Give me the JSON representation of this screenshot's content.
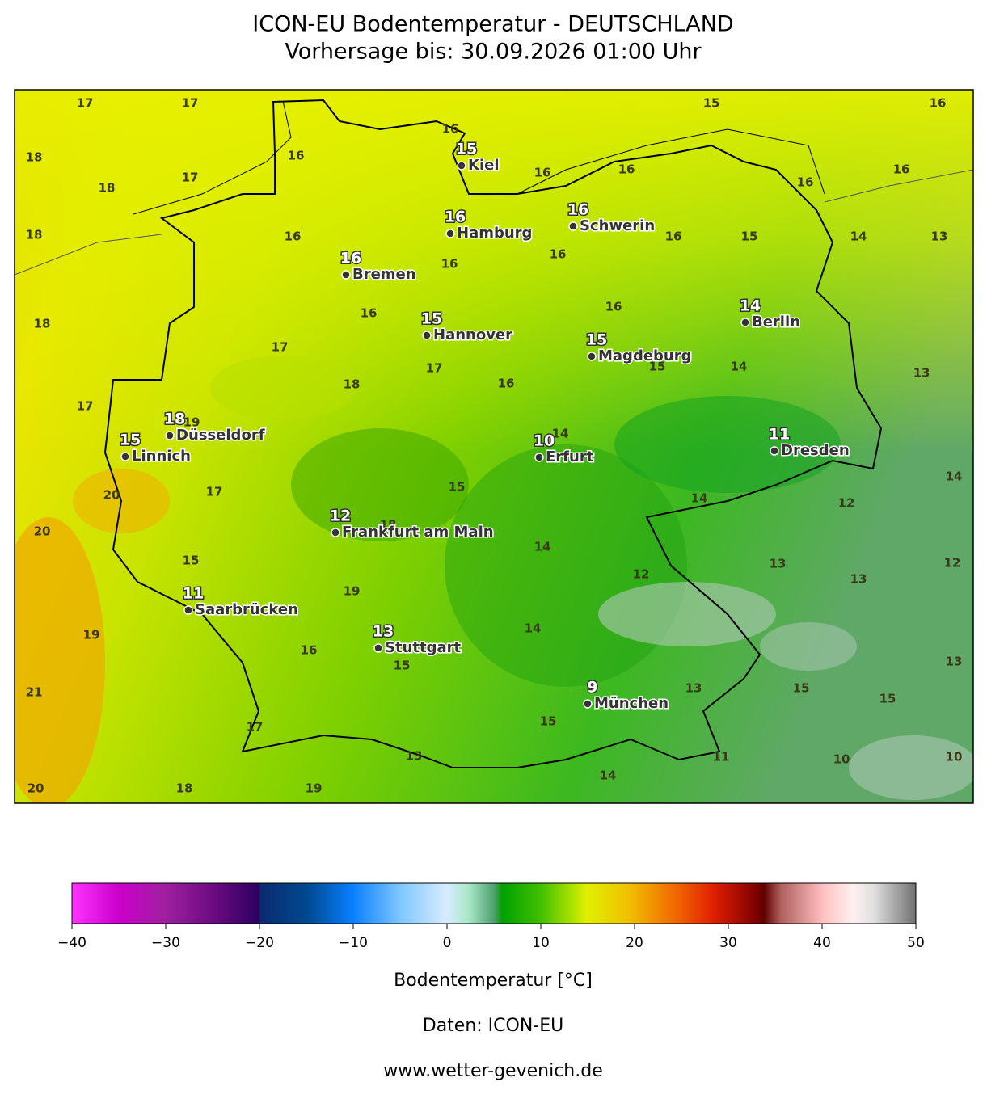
{
  "title": "ICON-EU Bodentemperatur - DEUTSCHLAND",
  "subtitle": "Vorhersage bis: 30.09.2026 01:00 Uhr",
  "cities": [
    {
      "name": "Kiel",
      "value": 15
    },
    {
      "name": "Hamburg",
      "value": 16
    },
    {
      "name": "Schwerin",
      "value": 16
    },
    {
      "name": "Bremen",
      "value": 16
    },
    {
      "name": "Hannover",
      "value": 15
    },
    {
      "name": "Magdeburg",
      "value": 15
    },
    {
      "name": "Berlin",
      "value": 14
    },
    {
      "name": "Düsseldorf",
      "value": 18
    },
    {
      "name": "Linnich",
      "value": 15
    },
    {
      "name": "Erfurt",
      "value": 10
    },
    {
      "name": "Dresden",
      "value": 11
    },
    {
      "name": "Frankfurt am Main",
      "value": 12
    },
    {
      "name": "Saarbrücken",
      "value": 11
    },
    {
      "name": "Stuttgart",
      "value": 13
    },
    {
      "name": "München",
      "value": 9
    }
  ],
  "field_labels": [
    17,
    17,
    15,
    16,
    18,
    16,
    16,
    17,
    18,
    16,
    16,
    16,
    16,
    18,
    16,
    16,
    15,
    14,
    13,
    16,
    16,
    18,
    16,
    16,
    17,
    17,
    15,
    14,
    13,
    18,
    16,
    17,
    19,
    14,
    20,
    17,
    15,
    14,
    12,
    14,
    20,
    18,
    14,
    15,
    12,
    13,
    13,
    12,
    19,
    19,
    14,
    16,
    15,
    13,
    21,
    13,
    15,
    15,
    15,
    17,
    13,
    11,
    10,
    10,
    14,
    20,
    18,
    19
  ],
  "colorbar": {
    "label": "Bodentemperatur [°C]",
    "range": [
      -40,
      50
    ],
    "ticks": [
      {
        "value": -40,
        "label": "−40"
      },
      {
        "value": -30,
        "label": "−30"
      },
      {
        "value": -20,
        "label": "−20"
      },
      {
        "value": -10,
        "label": "−10"
      },
      0,
      10,
      20,
      30,
      40,
      50
    ]
  },
  "source": "Daten: ICON-EU",
  "website": "www.wetter-gevenich.de"
}
